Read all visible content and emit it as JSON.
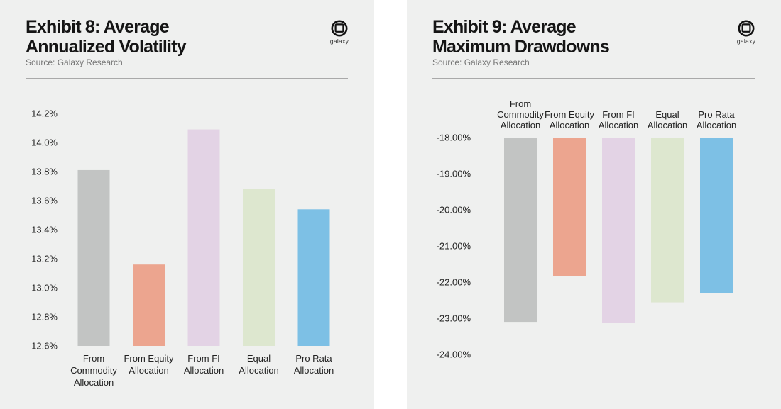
{
  "brand": {
    "logo_text": "galaxy"
  },
  "charts": [
    {
      "title_line1": "Exhibit 8: Average",
      "title_line2": "Annualized Volatility",
      "source": "Source: Galaxy Research"
    },
    {
      "title_line1": "Exhibit 9: Average",
      "title_line2": "Maximum Drawdowns",
      "source": "Source: Galaxy Research"
    }
  ],
  "chart_data": [
    {
      "type": "bar",
      "title": "Exhibit 8: Average Annualized Volatility",
      "categories": [
        [
          "From",
          "Commodity",
          "Allocation"
        ],
        [
          "From Equity",
          "Allocation"
        ],
        [
          "From FI",
          "Allocation"
        ],
        [
          "Equal",
          "Allocation"
        ],
        [
          "Pro Rata",
          "Allocation"
        ]
      ],
      "values": [
        13.81,
        13.16,
        14.09,
        13.68,
        13.54
      ],
      "colors": [
        "#c2c4c3",
        "#eca58f",
        "#e3d3e5",
        "#dde7cf",
        "#7dc0e5"
      ],
      "yticks": [
        "14.2%",
        "14.0%",
        "13.8%",
        "13.6%",
        "13.4%",
        "13.2%",
        "13.0%",
        "12.8%",
        "12.6%"
      ],
      "ylim": [
        12.6,
        14.2
      ],
      "category_position": "bottom"
    },
    {
      "type": "bar",
      "title": "Exhibit 9: Average Maximum Drawdowns",
      "categories": [
        [
          "From",
          "Commodity",
          "Allocation"
        ],
        [
          "From Equity",
          "Allocation"
        ],
        [
          "From FI",
          "Allocation"
        ],
        [
          "Equal",
          "Allocation"
        ],
        [
          "Pro Rata",
          "Allocation"
        ]
      ],
      "values": [
        -23.1,
        -21.83,
        -23.12,
        -22.56,
        -22.3
      ],
      "colors": [
        "#c2c4c3",
        "#eca58f",
        "#e3d3e5",
        "#dde7cf",
        "#7dc0e5"
      ],
      "yticks": [
        "-18.00%",
        "-19.00%",
        "-20.00%",
        "-21.00%",
        "-22.00%",
        "-23.00%",
        "-24.00%"
      ],
      "ylim": [
        -24,
        -18
      ],
      "category_position": "top"
    }
  ]
}
